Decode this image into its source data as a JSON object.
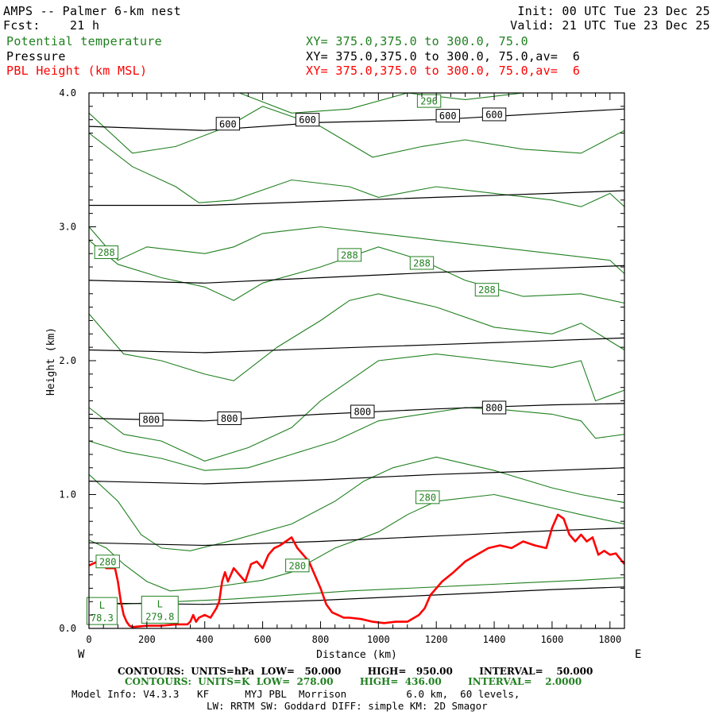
{
  "header": {
    "title": "AMPS -- Palmer 6-km nest",
    "fcst": "Fcst:    21 h",
    "init": "Init: 00 UTC Tue 23 Dec 25",
    "valid": "Valid: 21 UTC Tue 23 Dec 25",
    "var1_name": "Potential temperature",
    "var1_xy": "XY= 375.0,375.0 to 300.0, 75.0",
    "var2_name": "Pressure",
    "var2_xy": "XY= 375.0,375.0 to 300.0, 75.0,av=  6",
    "var3_name": "PBL Height (km MSL)",
    "var3_xy": "XY= 375.0,375.0 to 300.0, 75.0,av=  6"
  },
  "footer": {
    "pressure_contours": "CONTOURS:  UNITS=hPa  LOW=   50.000        HIGH=   950.00        INTERVAL=    50.000",
    "theta_contours": "CONTOURS:  UNITS=K  LOW=  278.00        HIGH=  436.00        INTERVAL=    2.0000",
    "model_info": "Model Info: V4.3.3   KF      MYJ PBL  Morrison          6.0 km,  60 levels,",
    "model_info2": "LW: RRTM SW: Goddard DIFF: simple KM: 2D Smagor",
    "west": "W",
    "east": "E"
  },
  "colors": {
    "pressure": "#000000",
    "theta": "#208020",
    "pbl": "#ff0000"
  },
  "chart_data": {
    "type": "line",
    "xlabel": "Distance (km)",
    "ylabel": "Height (km)",
    "xlim": [
      0,
      1850
    ],
    "ylim": [
      0,
      4.0
    ],
    "x_ticks": [
      "0",
      "200",
      "400",
      "600",
      "800",
      "1000",
      "1200",
      "1400",
      "1600",
      "1800"
    ],
    "y_ticks": [
      "0.0",
      "1.0",
      "2.0",
      "3.0",
      "4.0"
    ],
    "pressure_series": [
      {
        "name": "600",
        "x": [
          0,
          400,
          800,
          1200,
          1600,
          1850
        ],
        "y": [
          3.75,
          3.72,
          3.78,
          3.8,
          3.85,
          3.88
        ]
      },
      {
        "x": [
          0,
          400,
          800,
          1200,
          1600,
          1850
        ],
        "y": [
          3.16,
          3.16,
          3.19,
          3.22,
          3.25,
          3.27
        ]
      },
      {
        "x": [
          0,
          400,
          800,
          1200,
          1600,
          1850
        ],
        "y": [
          2.6,
          2.58,
          2.62,
          2.66,
          2.69,
          2.71
        ]
      },
      {
        "x": [
          0,
          400,
          800,
          1200,
          1600,
          1850
        ],
        "y": [
          2.08,
          2.06,
          2.09,
          2.12,
          2.15,
          2.17
        ]
      },
      {
        "name": "800",
        "x": [
          0,
          400,
          800,
          1200,
          1600,
          1850
        ],
        "y": [
          1.57,
          1.55,
          1.6,
          1.64,
          1.67,
          1.68
        ]
      },
      {
        "x": [
          0,
          400,
          800,
          1200,
          1600,
          1850
        ],
        "y": [
          1.1,
          1.08,
          1.11,
          1.15,
          1.18,
          1.2
        ]
      },
      {
        "x": [
          0,
          400,
          800,
          1200,
          1600,
          1850
        ],
        "y": [
          0.64,
          0.62,
          0.65,
          0.69,
          0.73,
          0.75
        ]
      },
      {
        "x": [
          0,
          400,
          800,
          1200,
          1600,
          1850
        ],
        "y": [
          0.19,
          0.18,
          0.21,
          0.25,
          0.29,
          0.31
        ]
      }
    ],
    "theta_series": [
      {
        "x": [
          520,
          700,
          900,
          1100,
          1300,
          1500,
          1700,
          1850
        ],
        "y": [
          4.0,
          3.85,
          3.88,
          4.0,
          3.95,
          4.02,
          4.0,
          4.0
        ]
      },
      {
        "x": [
          0,
          150,
          300,
          480,
          600,
          800,
          980,
          1150,
          1300,
          1500,
          1700,
          1850
        ],
        "y": [
          3.85,
          3.55,
          3.6,
          3.75,
          3.9,
          3.75,
          3.52,
          3.6,
          3.65,
          3.58,
          3.55,
          3.72
        ]
      },
      {
        "x": [
          0,
          150,
          300,
          380,
          500,
          700,
          900,
          1000,
          1200,
          1400,
          1600,
          1700,
          1800,
          1850
        ],
        "y": [
          3.7,
          3.45,
          3.3,
          3.18,
          3.2,
          3.35,
          3.3,
          3.22,
          3.3,
          3.25,
          3.2,
          3.15,
          3.25,
          3.15
        ]
      },
      {
        "x": [
          0,
          100,
          200,
          400,
          500,
          600,
          800,
          1000,
          1200,
          1400,
          1600,
          1800,
          1850
        ],
        "y": [
          3.0,
          2.75,
          2.85,
          2.8,
          2.85,
          2.95,
          3.0,
          2.95,
          2.9,
          2.85,
          2.8,
          2.75,
          2.65
        ]
      },
      {
        "x": [
          0,
          100,
          250,
          400,
          500,
          600,
          800,
          1000,
          1150,
          1300,
          1500,
          1700,
          1850
        ],
        "y": [
          2.9,
          2.72,
          2.62,
          2.55,
          2.45,
          2.58,
          2.7,
          2.85,
          2.75,
          2.6,
          2.48,
          2.5,
          2.43
        ]
      },
      {
        "x": [
          0,
          120,
          250,
          400,
          500,
          650,
          800,
          900,
          1000,
          1200,
          1400,
          1600,
          1700,
          1850
        ],
        "y": [
          2.35,
          2.05,
          2.0,
          1.9,
          1.85,
          2.1,
          2.3,
          2.45,
          2.5,
          2.4,
          2.25,
          2.2,
          2.28,
          2.08
        ]
      },
      {
        "x": [
          0,
          120,
          250,
          400,
          550,
          700,
          800,
          900,
          1000,
          1200,
          1400,
          1600,
          1700,
          1750,
          1850
        ],
        "y": [
          1.65,
          1.45,
          1.4,
          1.25,
          1.35,
          1.5,
          1.7,
          1.85,
          2.0,
          2.05,
          2.0,
          1.95,
          2.0,
          1.7,
          1.78
        ]
      },
      {
        "x": [
          0,
          120,
          250,
          400,
          550,
          700,
          850,
          1000,
          1150,
          1300,
          1450,
          1600,
          1700,
          1750,
          1850
        ],
        "y": [
          1.4,
          1.32,
          1.27,
          1.18,
          1.2,
          1.3,
          1.4,
          1.55,
          1.6,
          1.65,
          1.63,
          1.6,
          1.55,
          1.42,
          1.45
        ]
      },
      {
        "x": [
          0,
          100,
          180,
          250,
          350,
          500,
          700,
          850,
          950,
          1050,
          1200,
          1400,
          1600,
          1700,
          1850
        ],
        "y": [
          1.15,
          0.95,
          0.7,
          0.6,
          0.58,
          0.66,
          0.78,
          0.95,
          1.1,
          1.2,
          1.28,
          1.18,
          1.05,
          1.0,
          0.94
        ]
      },
      {
        "x": [
          0,
          60,
          120,
          200,
          280,
          400,
          600,
          700,
          850,
          1000,
          1100,
          1200,
          1400,
          1600,
          1700,
          1850
        ],
        "y": [
          0.66,
          0.6,
          0.48,
          0.35,
          0.28,
          0.3,
          0.36,
          0.42,
          0.6,
          0.72,
          0.85,
          0.95,
          1.0,
          0.9,
          0.85,
          0.78
        ]
      },
      {
        "x": [
          100,
          300,
          500,
          700,
          900,
          1100,
          1300,
          1500,
          1700,
          1850
        ],
        "y": [
          0.18,
          0.2,
          0.22,
          0.25,
          0.28,
          0.3,
          0.32,
          0.34,
          0.36,
          0.38
        ]
      }
    ],
    "theta_labels": [
      {
        "text": "296",
        "x": 1175,
        "y": 3.94
      },
      {
        "text": "288",
        "x": 60,
        "y": 2.81
      },
      {
        "text": "288",
        "x": 900,
        "y": 2.79
      },
      {
        "text": "288",
        "x": 1150,
        "y": 2.73
      },
      {
        "text": "288",
        "x": 1375,
        "y": 2.53
      },
      {
        "text": "280",
        "x": 1170,
        "y": 0.98
      },
      {
        "text": "280",
        "x": 65,
        "y": 0.5
      },
      {
        "text": "280",
        "x": 720,
        "y": 0.47
      }
    ],
    "pressure_labels": [
      {
        "text": "600",
        "x": 480,
        "y": 3.77
      },
      {
        "text": "600",
        "x": 755,
        "y": 3.8
      },
      {
        "text": "600",
        "x": 1240,
        "y": 3.83
      },
      {
        "text": "600",
        "x": 1400,
        "y": 3.84
      },
      {
        "text": "800",
        "x": 215,
        "y": 1.56
      },
      {
        "text": "800",
        "x": 485,
        "y": 1.57
      },
      {
        "text": "800",
        "x": 945,
        "y": 1.62
      },
      {
        "text": "800",
        "x": 1400,
        "y": 1.65
      }
    ],
    "low_markers": [
      {
        "letter": "L",
        "value": "78.3",
        "x": 45,
        "y": 0.13
      },
      {
        "letter": "L",
        "value": "279.8",
        "x": 245,
        "y": 0.14
      }
    ],
    "pbl_series": {
      "name": "PBL Height (km MSL)",
      "x": [
        0,
        30,
        60,
        90,
        100,
        110,
        120,
        130,
        140,
        150,
        200,
        250,
        300,
        340,
        350,
        360,
        370,
        380,
        400,
        420,
        440,
        450,
        460,
        470,
        480,
        500,
        520,
        540,
        560,
        580,
        600,
        620,
        640,
        660,
        680,
        700,
        720,
        740,
        760,
        780,
        800,
        820,
        840,
        860,
        880,
        900,
        940,
        980,
        1020,
        1060,
        1100,
        1140,
        1160,
        1180,
        1200,
        1220,
        1260,
        1300,
        1340,
        1380,
        1420,
        1460,
        1500,
        1540,
        1580,
        1600,
        1620,
        1640,
        1660,
        1680,
        1700,
        1720,
        1740,
        1760,
        1780,
        1800,
        1820,
        1850
      ],
      "y": [
        0.47,
        0.5,
        0.45,
        0.45,
        0.35,
        0.2,
        0.1,
        0.05,
        0.02,
        0.01,
        0.02,
        0.02,
        0.03,
        0.03,
        0.05,
        0.1,
        0.05,
        0.08,
        0.1,
        0.08,
        0.15,
        0.2,
        0.35,
        0.42,
        0.35,
        0.45,
        0.4,
        0.35,
        0.48,
        0.5,
        0.45,
        0.55,
        0.6,
        0.62,
        0.65,
        0.68,
        0.6,
        0.55,
        0.5,
        0.4,
        0.3,
        0.18,
        0.12,
        0.1,
        0.08,
        0.08,
        0.07,
        0.05,
        0.04,
        0.05,
        0.05,
        0.1,
        0.15,
        0.25,
        0.3,
        0.35,
        0.42,
        0.5,
        0.55,
        0.6,
        0.62,
        0.6,
        0.65,
        0.62,
        0.6,
        0.75,
        0.85,
        0.82,
        0.7,
        0.65,
        0.7,
        0.65,
        0.68,
        0.55,
        0.58,
        0.55,
        0.56,
        0.48
      ]
    }
  }
}
